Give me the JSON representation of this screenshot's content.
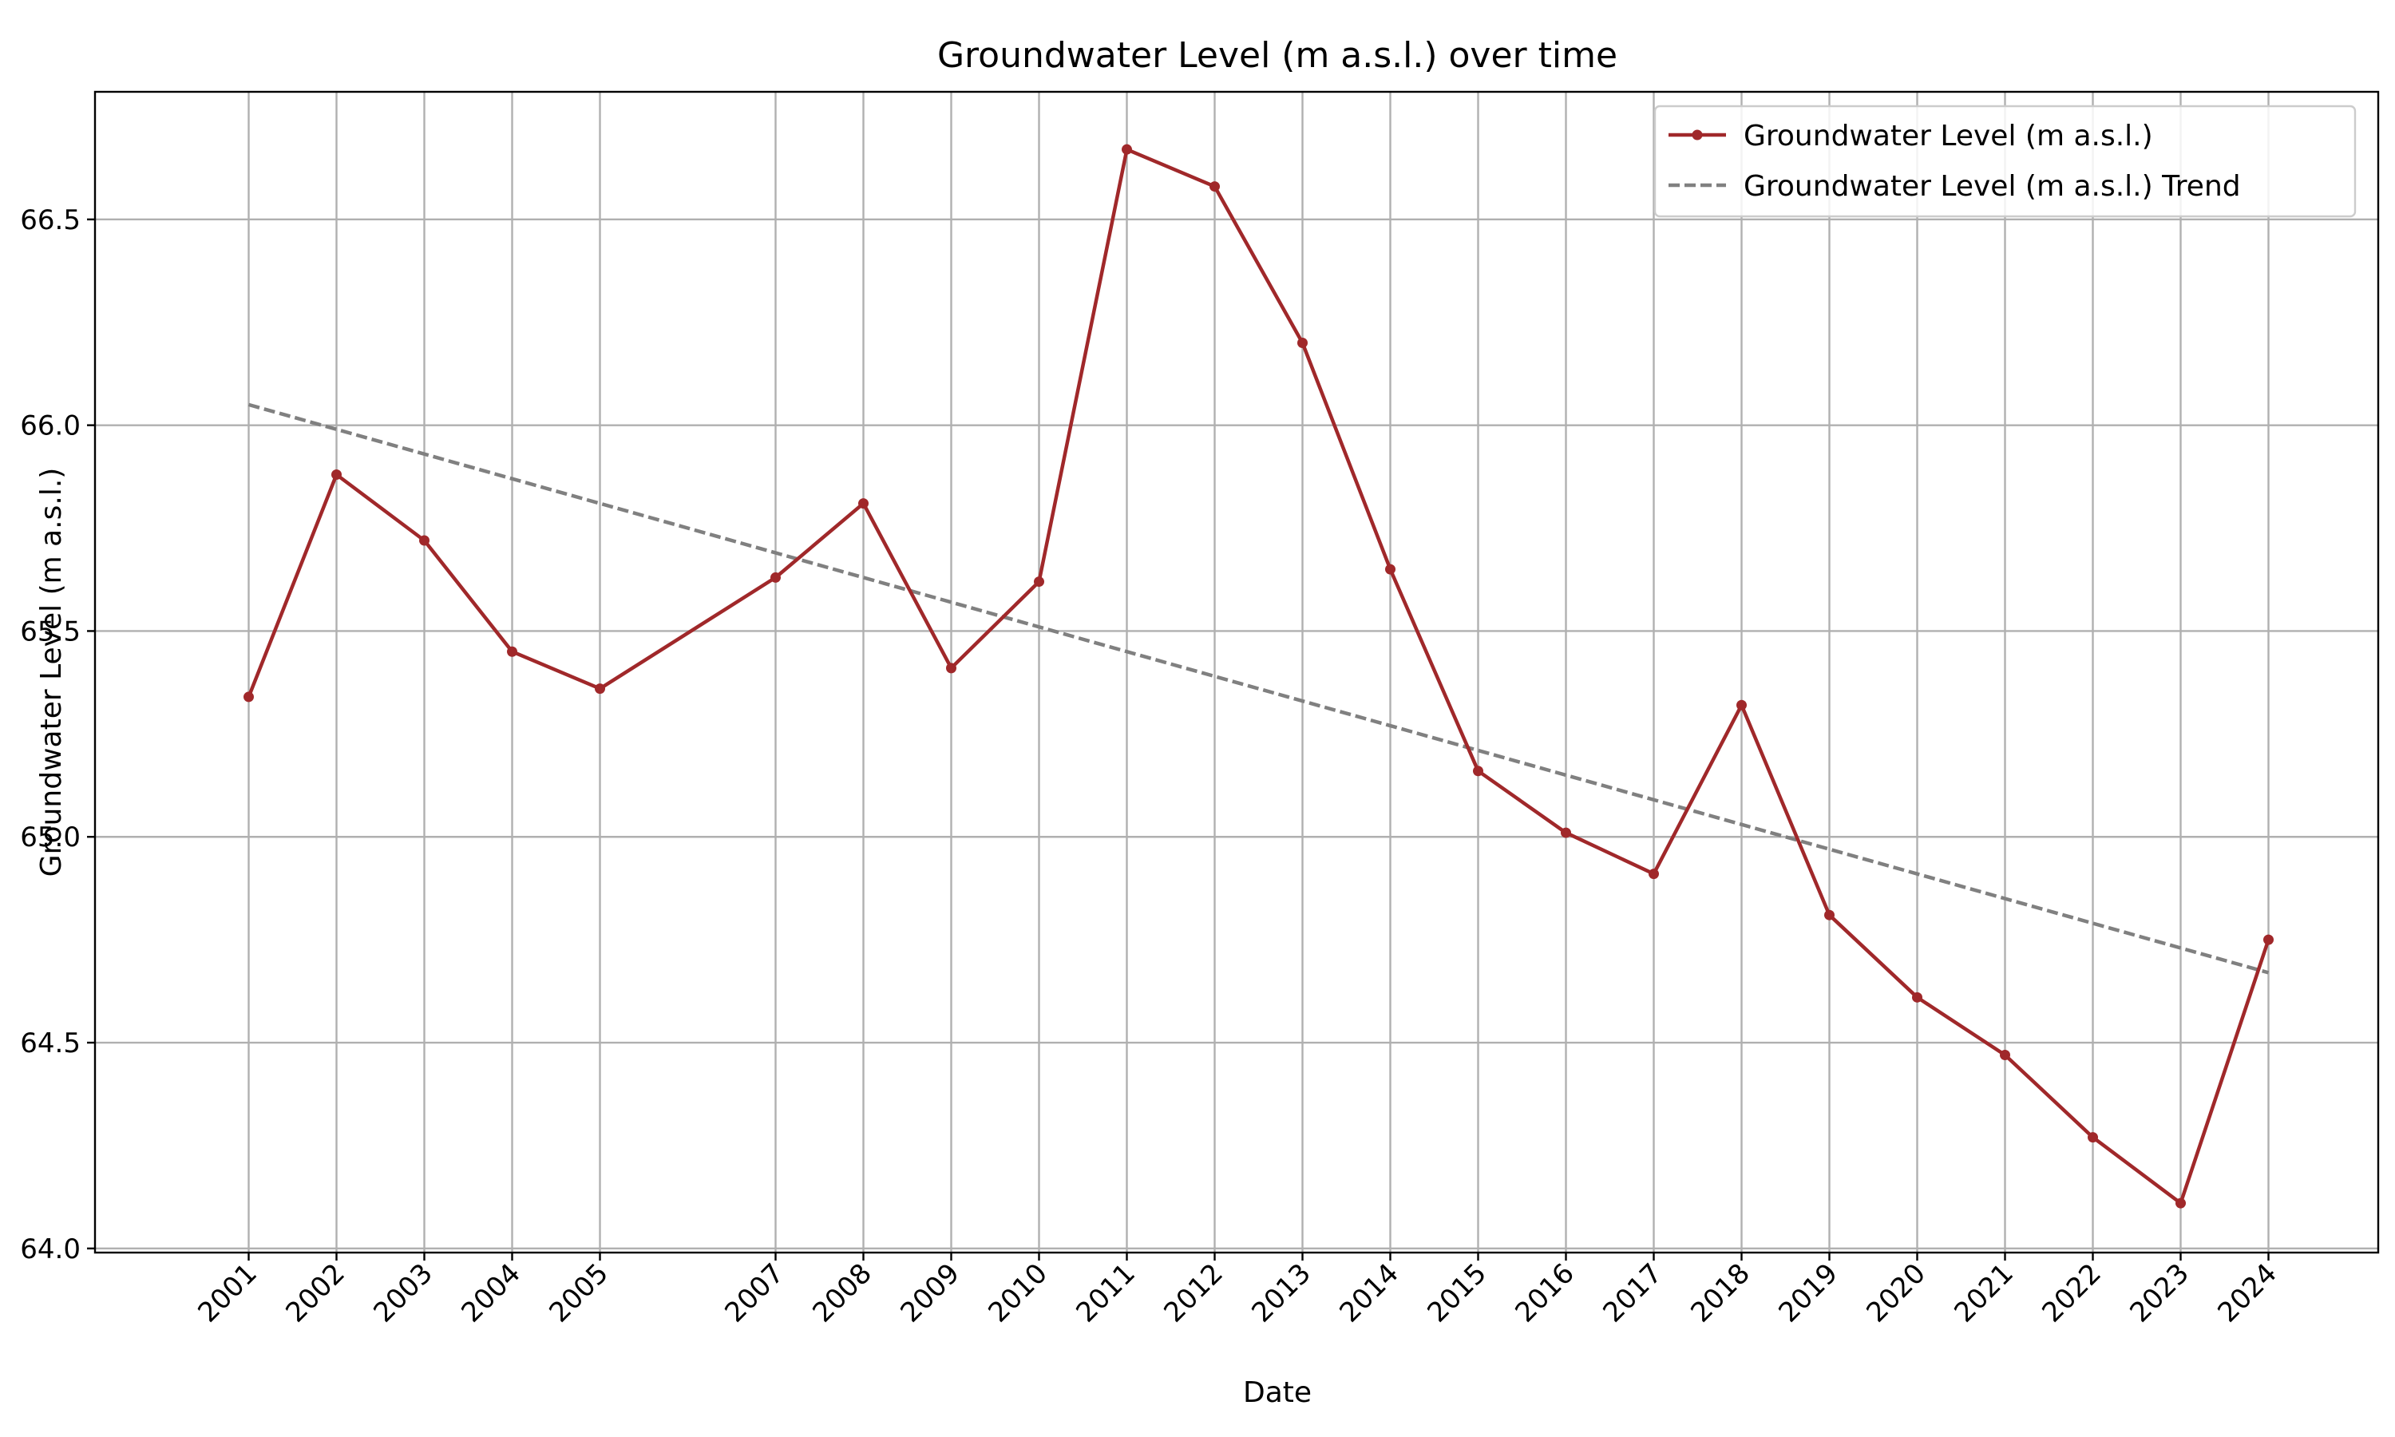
{
  "chart_data": {
    "type": "line",
    "title": "Groundwater Level (m a.s.l.) over time",
    "xlabel": "Date",
    "ylabel": "Groundwater Level (m a.s.l.)",
    "x": [
      2001,
      2002,
      2003,
      2004,
      2005,
      2007,
      2008,
      2009,
      2010,
      2011,
      2012,
      2013,
      2014,
      2015,
      2016,
      2017,
      2018,
      2019,
      2020,
      2021,
      2022,
      2023,
      2024
    ],
    "x_tick_labels": [
      "2001",
      "2002",
      "2003",
      "2004",
      "2005",
      "2007",
      "2008",
      "2009",
      "2010",
      "2011",
      "2012",
      "2013",
      "2014",
      "2015",
      "2016",
      "2017",
      "2018",
      "2019",
      "2020",
      "2021",
      "2022",
      "2023",
      "2024"
    ],
    "xlim": [
      1999.25,
      2025.25
    ],
    "ylim": [
      63.99,
      66.81
    ],
    "y_ticks": [
      64.0,
      64.5,
      65.0,
      65.5,
      66.0,
      66.5
    ],
    "y_tick_labels": [
      "64.0",
      "64.5",
      "65.0",
      "65.5",
      "66.0",
      "66.5"
    ],
    "grid": true,
    "legend_position": "top-right",
    "series": [
      {
        "name": "Groundwater Level (m a.s.l.)",
        "style": "solid-with-markers",
        "color": "#a0282a",
        "values": [
          65.34,
          65.88,
          65.72,
          65.45,
          65.36,
          65.63,
          65.81,
          65.41,
          65.62,
          66.67,
          66.58,
          66.2,
          65.65,
          65.16,
          65.01,
          64.91,
          65.32,
          64.81,
          64.61,
          64.47,
          64.27,
          64.11,
          64.75
        ]
      },
      {
        "name": "Groundwater Level (m a.s.l.) Trend",
        "style": "dashed",
        "color": "#808080",
        "x": [
          2001,
          2024
        ],
        "values": [
          66.05,
          64.67
        ]
      }
    ]
  }
}
